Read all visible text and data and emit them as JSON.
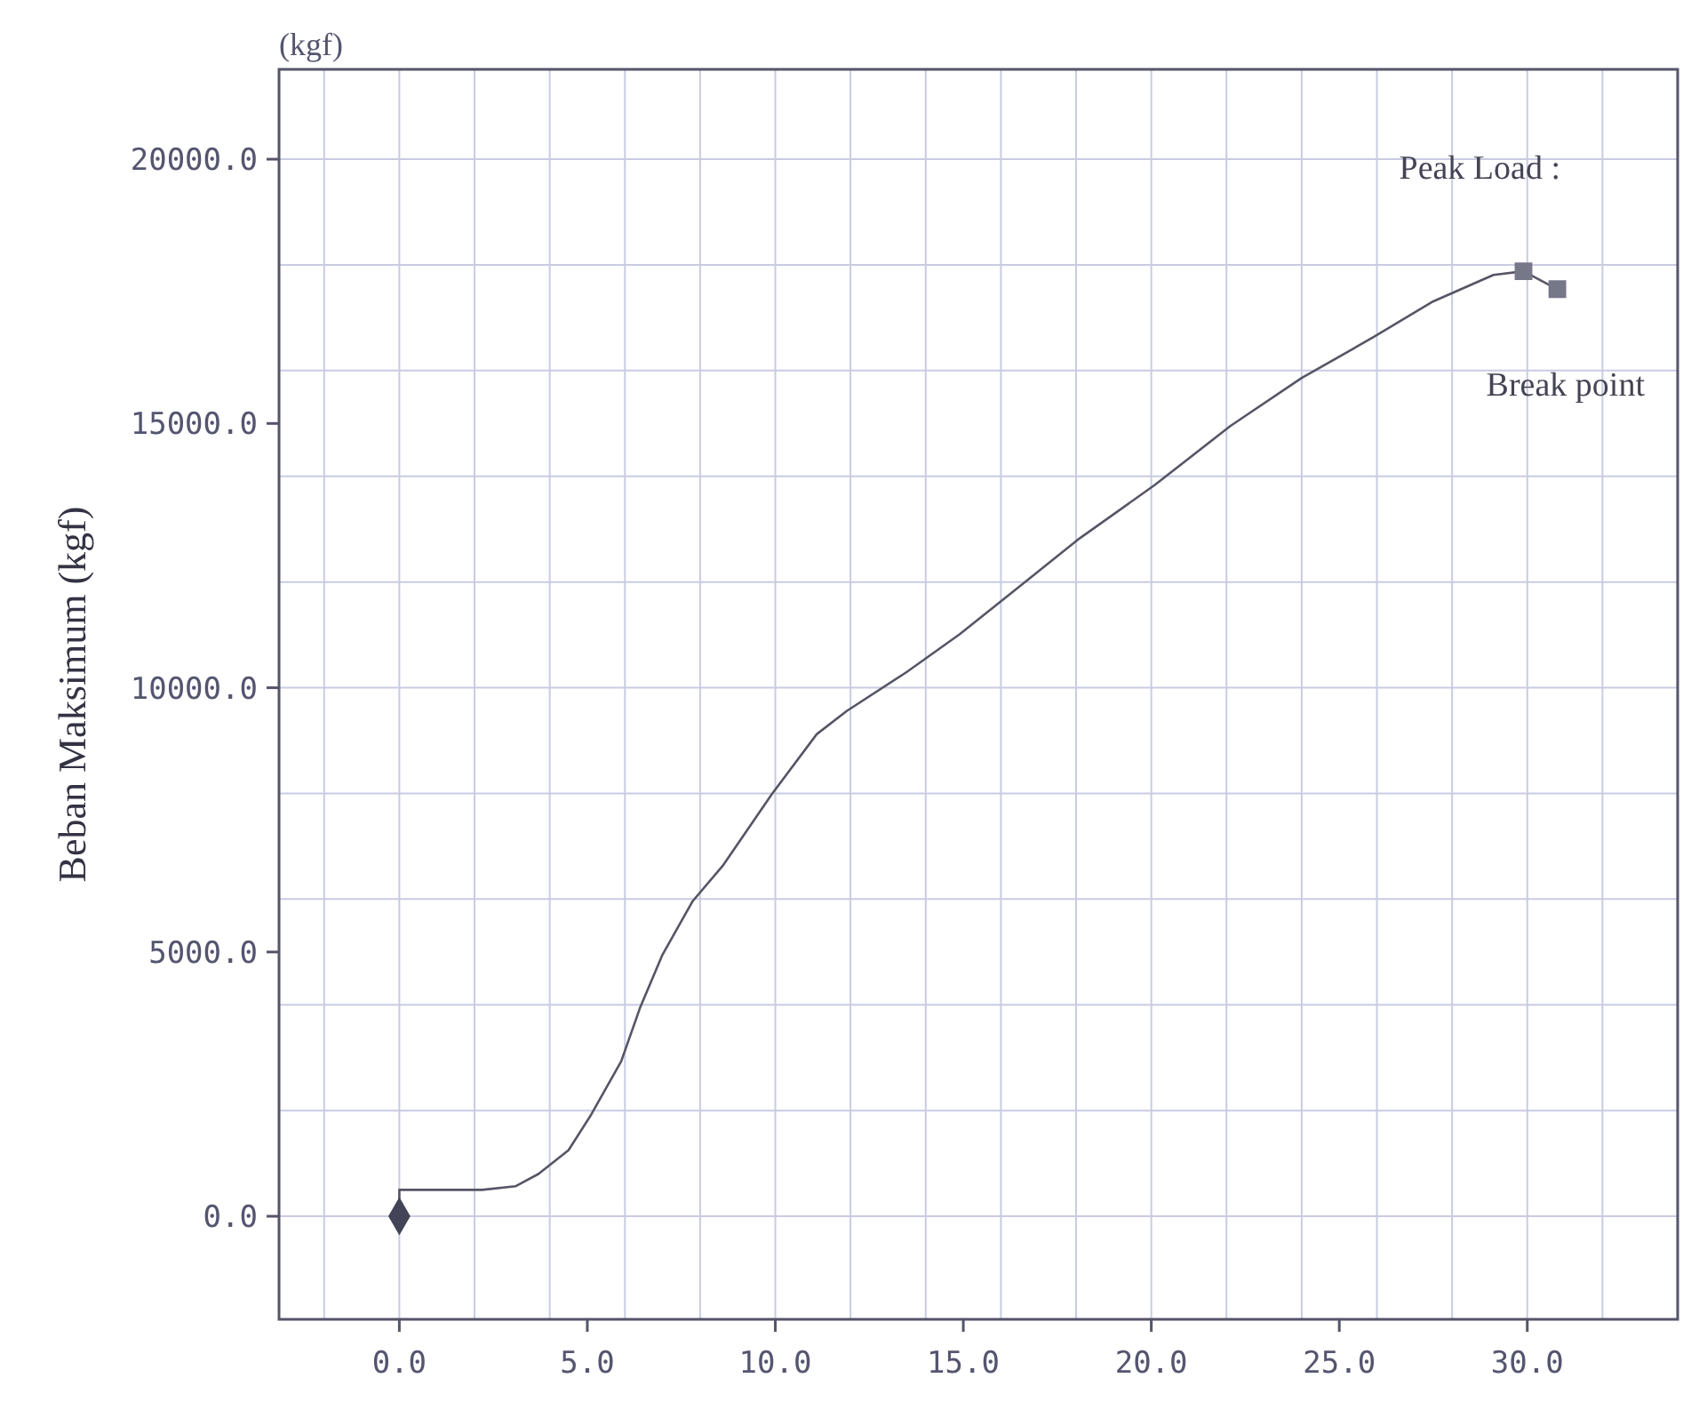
{
  "chart_data": {
    "type": "line",
    "ylabel": "Beban Maksimum (kgf)",
    "xlim": [
      -3.2,
      34
    ],
    "ylim": [
      -1950,
      21700
    ],
    "xticks": [
      {
        "value": 0,
        "label": "0.0"
      },
      {
        "value": 5,
        "label": "5.0"
      },
      {
        "value": 10,
        "label": "10.0"
      },
      {
        "value": 15,
        "label": "15.0"
      },
      {
        "value": 20,
        "label": "20.0"
      },
      {
        "value": 25,
        "label": "25.0"
      },
      {
        "value": 30,
        "label": "30.0"
      }
    ],
    "yticks": [
      {
        "value": 0,
        "label": "0.0"
      },
      {
        "value": 5000,
        "label": "5000.0"
      },
      {
        "value": 10000,
        "label": "10000.0"
      },
      {
        "value": 15000,
        "label": "15000.0"
      },
      {
        "value": 20000,
        "label": "20000.0"
      }
    ],
    "grid": true,
    "series": [
      {
        "color": "#555566",
        "marker": "none",
        "line_style": "solid",
        "x": [
          0,
          0,
          2.2,
          3.1,
          3.7,
          4.5,
          5.1,
          5.9,
          6.4,
          7.0,
          7.8,
          8.6,
          9.9,
          11.1,
          11.9,
          13.5,
          14.9,
          16.5,
          18.1,
          20.1,
          22.1,
          24.0,
          25.9,
          27.5,
          29.1,
          29.9,
          30.8
        ],
        "values": [
          0,
          500,
          500,
          570,
          800,
          1250,
          1920,
          2930,
          3940,
          4950,
          5960,
          6630,
          7980,
          9120,
          9560,
          10300,
          11010,
          11920,
          12830,
          13840,
          14950,
          15860,
          16630,
          17310,
          17810,
          17880,
          17540
        ]
      },
      {
        "type": "scatter",
        "color": "#444458",
        "marker": "diamond",
        "x": [
          0
        ],
        "values": [
          0
        ]
      },
      {
        "type": "scatter",
        "color": "#77778a",
        "marker": "square",
        "x": [
          29.9,
          30.8
        ],
        "values": [
          17880,
          17540
        ]
      }
    ],
    "annotations": [
      "(kgf)",
      {
        "text": "Peak Load :",
        "x": 29.9,
        "y": 17880
      },
      {
        "text": "Break point",
        "x": 30.8,
        "y": 17540
      }
    ]
  }
}
